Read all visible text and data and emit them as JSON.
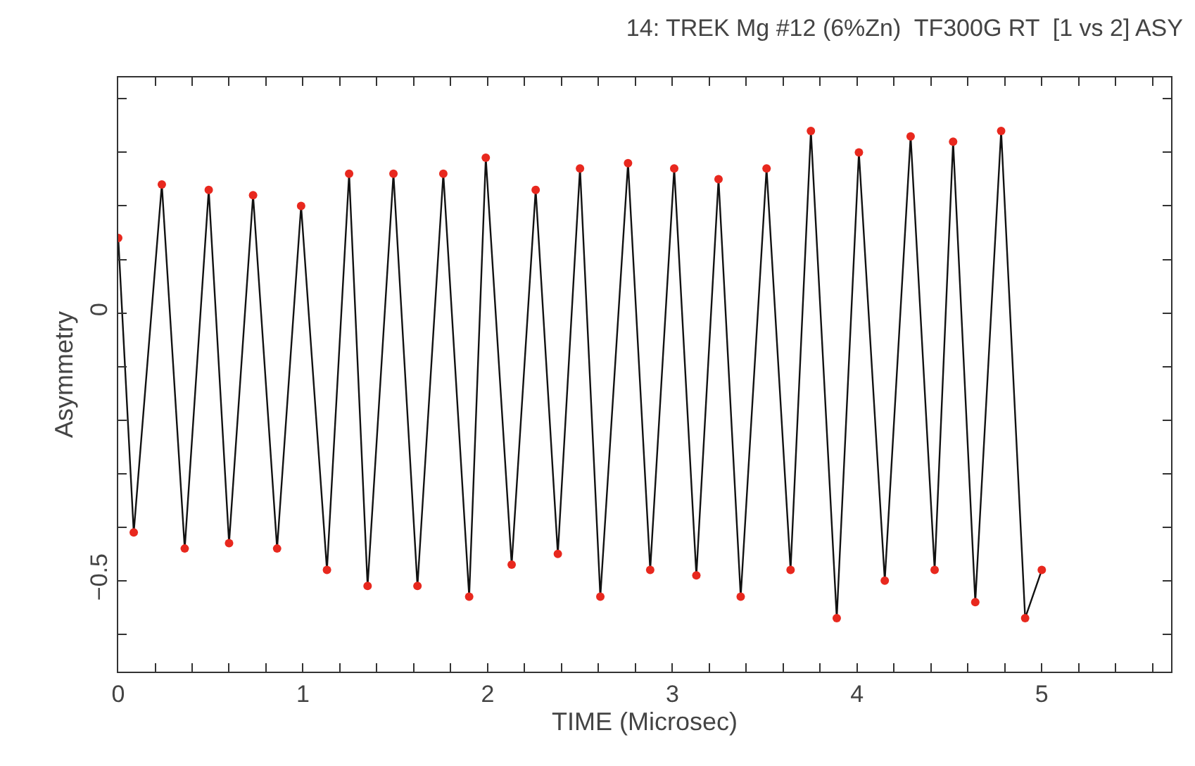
{
  "chart_data": {
    "type": "line",
    "title": "14: TREK Mg #12 (6%Zn)  TF300G RT  [1 vs 2] ASY",
    "xlabel": "TIME (Microsec)",
    "ylabel": "Asymmetry",
    "series": [
      {
        "marker": "none",
        "color": "#111111",
        "x": [
          0,
          0.084,
          0.236,
          0.36,
          0.49,
          0.6,
          0.73,
          0.86,
          0.99,
          1.13,
          1.25,
          1.35,
          1.49,
          1.62,
          1.76,
          1.9,
          1.99,
          2.13,
          2.26,
          2.38,
          2.5,
          2.61,
          2.76,
          2.88,
          3.01,
          3.13,
          3.25,
          3.37,
          3.51,
          3.64,
          3.75,
          3.89,
          4.01,
          4.15,
          4.29,
          4.42,
          4.52,
          4.64,
          4.78,
          4.91,
          5.0
        ],
        "values": [
          0.14,
          -0.41,
          0.24,
          -0.44,
          0.23,
          -0.43,
          0.22,
          -0.44,
          0.2,
          -0.48,
          0.26,
          -0.51,
          0.26,
          -0.51,
          0.26,
          -0.53,
          0.29,
          -0.47,
          0.23,
          -0.45,
          0.27,
          -0.53,
          0.28,
          -0.48,
          0.27,
          -0.49,
          0.25,
          -0.53,
          0.27,
          -0.48,
          0.34,
          -0.57,
          0.3,
          -0.5,
          0.33,
          -0.48,
          0.32,
          -0.54,
          0.34,
          -0.57,
          -0.48
        ]
      },
      {
        "type": "scatter",
        "marker": "circle",
        "color": "#e8281e",
        "x": [
          0,
          0.084,
          0.236,
          0.36,
          0.49,
          0.6,
          0.73,
          0.86,
          0.99,
          1.13,
          1.25,
          1.35,
          1.49,
          1.62,
          1.76,
          1.9,
          1.99,
          2.13,
          2.26,
          2.38,
          2.5,
          2.61,
          2.76,
          2.88,
          3.01,
          3.13,
          3.25,
          3.37,
          3.51,
          3.64,
          3.75,
          3.89,
          4.01,
          4.15,
          4.29,
          4.42,
          4.52,
          4.64,
          4.78,
          4.91,
          5.0
        ],
        "values": [
          0.14,
          -0.41,
          0.24,
          -0.44,
          0.23,
          -0.43,
          0.22,
          -0.44,
          0.2,
          -0.48,
          0.26,
          -0.51,
          0.26,
          -0.51,
          0.26,
          -0.53,
          0.29,
          -0.47,
          0.23,
          -0.45,
          0.27,
          -0.53,
          0.28,
          -0.48,
          0.27,
          -0.49,
          0.25,
          -0.53,
          0.27,
          -0.48,
          0.34,
          -0.57,
          0.3,
          -0.5,
          0.33,
          -0.48,
          0.32,
          -0.54,
          0.34,
          -0.57,
          -0.48
        ]
      }
    ],
    "xlim": [
      0,
      5.7
    ],
    "xticks": [
      0,
      {
        "value": 0.2,
        "label": null
      },
      {
        "value": 0.4,
        "label": null
      },
      {
        "value": 0.6,
        "label": null
      },
      {
        "value": 0.8,
        "label": null
      },
      1,
      {
        "value": 1.2,
        "label": null
      },
      {
        "value": 1.4,
        "label": null
      },
      {
        "value": 1.6,
        "label": null
      },
      {
        "value": 1.8,
        "label": null
      },
      2,
      {
        "value": 2.2,
        "label": null
      },
      {
        "value": 2.4,
        "label": null
      },
      {
        "value": 2.6,
        "label": null
      },
      {
        "value": 2.8,
        "label": null
      },
      3,
      {
        "value": 3.2,
        "label": null
      },
      {
        "value": 3.4,
        "label": null
      },
      {
        "value": 3.6,
        "label": null
      },
      {
        "value": 3.8,
        "label": null
      },
      4,
      {
        "value": 4.2,
        "label": null
      },
      {
        "value": 4.4,
        "label": null
      },
      {
        "value": 4.6,
        "label": null
      },
      {
        "value": 4.8,
        "label": null
      },
      5,
      {
        "value": 5.2,
        "label": null
      },
      {
        "value": 5.4,
        "label": null
      },
      {
        "value": 5.6,
        "label": null
      }
    ],
    "ylim": [
      -0.67,
      0.44
    ],
    "yticks": [
      {
        "value": -0.6,
        "label": null
      },
      {
        "value": -0.5,
        "label": "−0.5"
      },
      {
        "value": -0.4,
        "label": null
      },
      {
        "value": -0.3,
        "label": null
      },
      {
        "value": -0.2,
        "label": null
      },
      {
        "value": -0.1,
        "label": null
      },
      0,
      {
        "value": 0.1,
        "label": null
      },
      {
        "value": 0.2,
        "label": null
      },
      {
        "value": 0.3,
        "label": null
      },
      {
        "value": 0.4,
        "label": null
      }
    ],
    "grid": false,
    "line_style": "solid"
  }
}
